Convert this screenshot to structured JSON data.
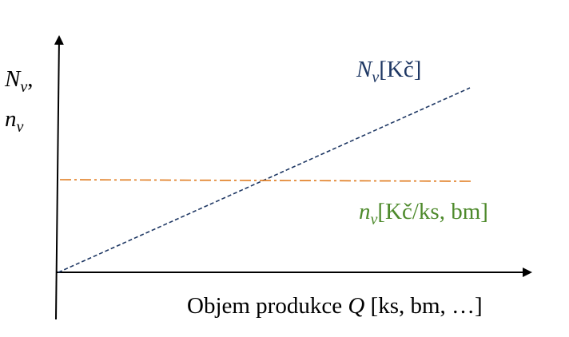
{
  "y_axis_label": {
    "line1_main": "N",
    "line1_sub": "v",
    "line1_trailing": ",",
    "line2_main": "n",
    "line2_sub": "v"
  },
  "x_axis_label": {
    "prefix": "Objem produkce ",
    "variable": "Q",
    "suffix": " [ks, bm, …]"
  },
  "total_cost_label": {
    "main": "N",
    "sub": "v",
    "unit": "[Kč]"
  },
  "unit_cost_label": {
    "main": "n",
    "sub": "v",
    "unit": "[Kč/ks, bm]"
  },
  "colors": {
    "axes": "#000000",
    "total_cost_line": "#1f3864",
    "unit_cost_line": "#e07b1e",
    "total_cost_text": "#1f3864",
    "unit_cost_text": "#4e8a2c",
    "axis_text": "#000000"
  },
  "series": {
    "total_cost": {
      "name": "N_v",
      "style": "dashed",
      "shape": "increasing-line-from-origin"
    },
    "unit_cost": {
      "name": "n_v",
      "style": "dash-dot",
      "shape": "constant-horizontal-line"
    }
  }
}
